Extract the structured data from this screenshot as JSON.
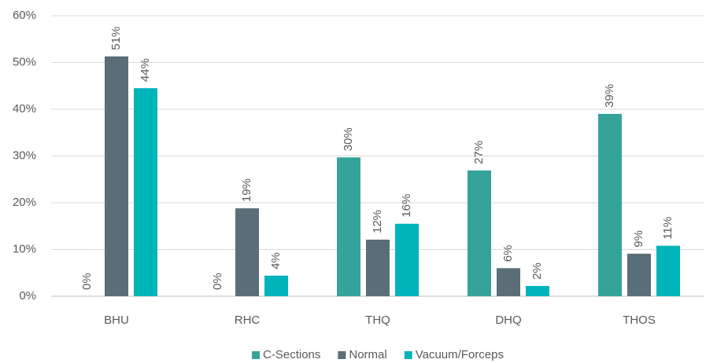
{
  "chart_data": {
    "type": "bar",
    "categories": [
      "BHU",
      "RHC",
      "THQ",
      "DHQ",
      "THOS"
    ],
    "series": [
      {
        "name": "C-Sections",
        "color": "#36a39b",
        "values": [
          0,
          0,
          29.7,
          26.9,
          39.0
        ],
        "value_labels": [
          "0%",
          "0%",
          "30%",
          "27%",
          "39%"
        ]
      },
      {
        "name": "Normal",
        "color": "#5a6e77",
        "values": [
          51.3,
          18.8,
          12.1,
          6.0,
          9.1
        ],
        "value_labels": [
          "51%",
          "19%",
          "12%",
          "6%",
          "9%"
        ]
      },
      {
        "name": "Vacuum/Forceps",
        "color": "#00b4bc",
        "values": [
          44.5,
          4.4,
          15.5,
          2.2,
          10.8
        ],
        "value_labels": [
          "44%",
          "4%",
          "16%",
          "2%",
          "11%"
        ]
      }
    ],
    "ylim": [
      0,
      60
    ],
    "yticks": [
      {
        "value": 0,
        "label": "0%"
      },
      {
        "value": 10,
        "label": "10%"
      },
      {
        "value": 20,
        "label": "20%"
      },
      {
        "value": 30,
        "label": "30%"
      },
      {
        "value": 40,
        "label": "40%"
      },
      {
        "value": 50,
        "label": "50%"
      },
      {
        "value": 60,
        "label": "60%"
      }
    ],
    "grid": true,
    "legend": "bottom"
  }
}
